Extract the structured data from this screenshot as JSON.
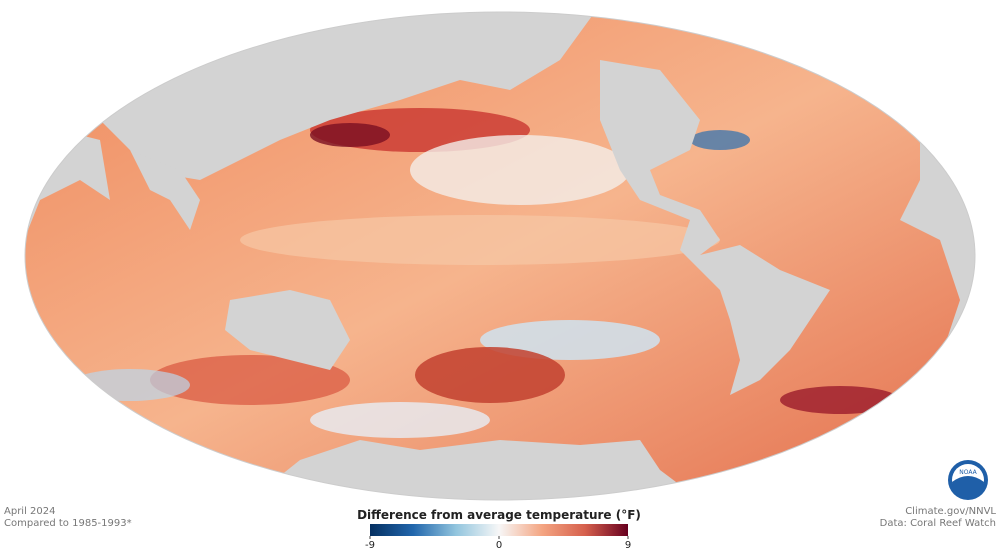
{
  "caption": {
    "date": "April 2024",
    "baseline": "Compared to 1985-1993*"
  },
  "credits": {
    "site": "Climate.gov/NNVL",
    "source": "Data: Coral Reef Watch"
  },
  "logo": "NOAA",
  "legend": {
    "title": "Difference from average temperature (°F)",
    "range": [
      -9,
      9
    ],
    "ticks": [
      -9,
      0,
      9
    ],
    "colors": [
      "#053061",
      "#2166ac",
      "#92c5de",
      "#f7f7f7",
      "#f4a582",
      "#d6604d",
      "#67001f"
    ]
  }
}
